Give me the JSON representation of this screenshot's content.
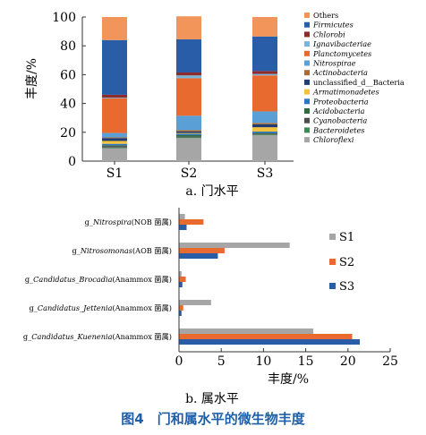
{
  "figure_caption": "图4　门和属水平的微生物丰度",
  "chart_data": [
    {
      "type": "bar",
      "stacked": true,
      "subtitle": "a. 门水平",
      "ylabel": "丰度/%",
      "xlabel": "",
      "ylim": [
        0,
        100
      ],
      "yticks": [
        0,
        20,
        40,
        60,
        80,
        100
      ],
      "categories": [
        "S1",
        "S2",
        "S3"
      ],
      "legend_position": "right",
      "series": [
        {
          "name": "Chloroflexi",
          "color": "#a6a6a6",
          "values": [
            9,
            16,
            18
          ]
        },
        {
          "name": "Bacteroidetes",
          "color": "#3f8a54",
          "values": [
            0.5,
            0.5,
            0.5
          ]
        },
        {
          "name": "Cyanobacteria",
          "color": "#4d4d4d",
          "values": [
            1,
            0.5,
            0.5
          ]
        },
        {
          "name": "Acidobacteria",
          "color": "#2e6b40",
          "values": [
            0.5,
            1,
            0.5
          ]
        },
        {
          "name": "Proteobacteria",
          "color": "#2e75c2",
          "values": [
            1,
            1,
            1
          ]
        },
        {
          "name": "Armatimonadetes",
          "color": "#f3c23c",
          "values": [
            2,
            0.5,
            3
          ]
        },
        {
          "name": "unclassified_d__Bacteria",
          "color": "#1f3d70",
          "values": [
            2,
            1,
            2
          ]
        },
        {
          "name": "Actinobacteria",
          "color": "#a86b3a",
          "values": [
            0.5,
            1,
            1
          ]
        },
        {
          "name": "Nitrospirae",
          "color": "#5aa0d6",
          "values": [
            3,
            10,
            8
          ]
        },
        {
          "name": "Planctomycetes",
          "color": "#e86a2e",
          "values": [
            24,
            26,
            25
          ]
        },
        {
          "name": "Ignavibacteriae",
          "color": "#7ab4d8",
          "values": [
            0.5,
            2,
            1
          ]
        },
        {
          "name": "Chlorobi",
          "color": "#8e2b2b",
          "values": [
            2,
            2,
            2
          ]
        },
        {
          "name": "Firmicutes",
          "color": "#2a5da8",
          "values": [
            38,
            23,
            24
          ]
        },
        {
          "name": "Others",
          "color": "#f2955a",
          "values": [
            16,
            16,
            13.5
          ]
        }
      ]
    },
    {
      "type": "bar",
      "orientation": "horizontal",
      "subtitle": "b. 属水平",
      "xlabel": "丰度/%",
      "xlim": [
        0,
        25
      ],
      "xticks": [
        0,
        5,
        10,
        15,
        20,
        25
      ],
      "legend_position": "right",
      "categories": [
        {
          "name": "g_Nitrospira",
          "suffix": "(NOB 菌属)"
        },
        {
          "name": "g_Nitrosomonas",
          "suffix": "(AOB 菌属)"
        },
        {
          "name": "g_Candidatus_Brocadia",
          "suffix": "(Anammox 菌属)"
        },
        {
          "name": "g_Candidatus_Jettenia",
          "suffix": "(Anammox 菌属)"
        },
        {
          "name": "g_Candidatus_Kuenenia",
          "suffix": "(Anammox 菌属)"
        }
      ],
      "series": [
        {
          "name": "S1",
          "color": "#a6a6a6",
          "values": [
            0.7,
            13.1,
            0.3,
            3.8,
            15.9
          ]
        },
        {
          "name": "S2",
          "color": "#e86a2e",
          "values": [
            2.9,
            5.4,
            0.8,
            0.5,
            20.5
          ]
        },
        {
          "name": "S3",
          "color": "#2a5da8",
          "values": [
            0.9,
            4.6,
            0.4,
            0.3,
            21.4
          ]
        }
      ]
    }
  ]
}
